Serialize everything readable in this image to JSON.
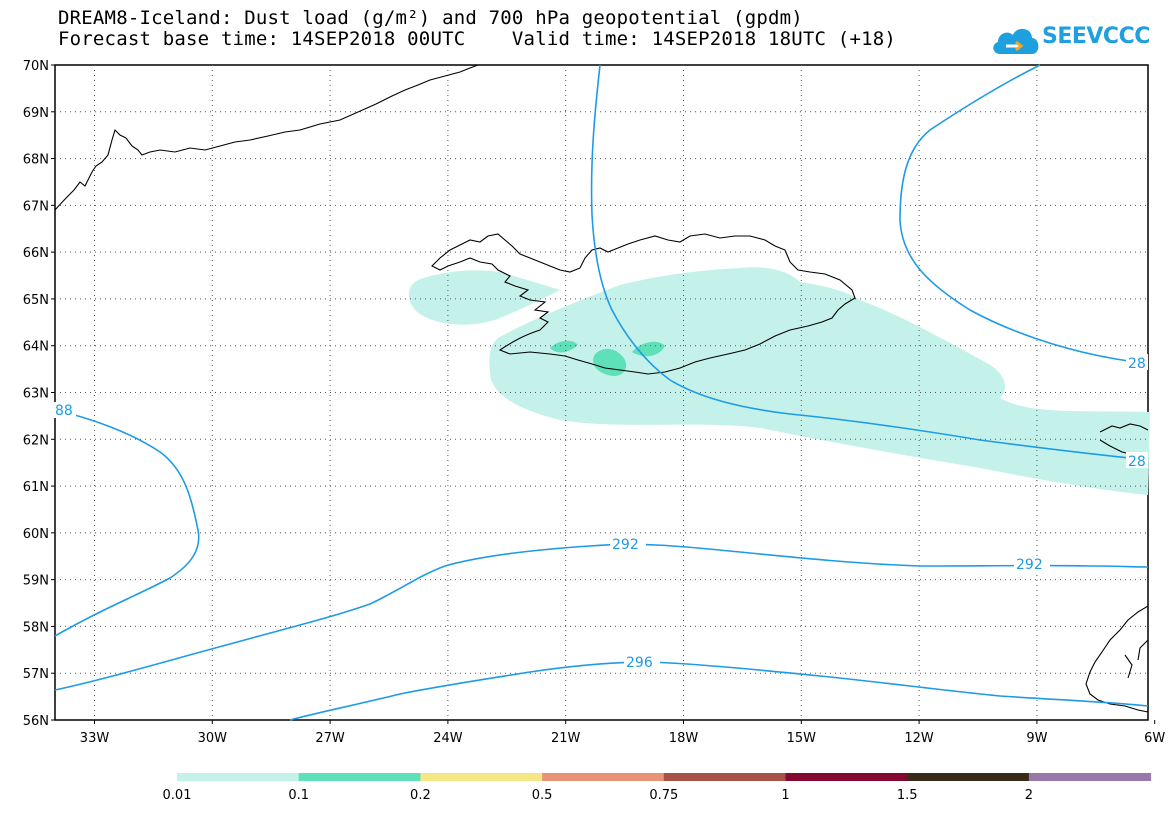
{
  "title": {
    "line1": "DREAM8-Iceland: Dust load (g/m²) and 700 hPa geopotential (gpdm)",
    "line2": "Forecast base time: 14SEP2018 00UTC    Valid time: 14SEP2018 18UTC (+18)"
  },
  "logo": {
    "text": "SEEVCCC",
    "icon": "cloud-icon",
    "color": "#1ea0df"
  },
  "map": {
    "lat_labels": [
      "70N",
      "69N",
      "68N",
      "67N",
      "66N",
      "65N",
      "64N",
      "63N",
      "62N",
      "61N",
      "60N",
      "59N",
      "58N",
      "57N",
      "56N"
    ],
    "lon_labels": [
      "33W",
      "30W",
      "27W",
      "24W",
      "21W",
      "18W",
      "15W",
      "12W",
      "9W",
      "6W"
    ],
    "contour_color": "#1e9be6",
    "dust_colors": {
      "light": "#c4f2ea",
      "medium": "#5ee0b8"
    },
    "contour_labels": [
      {
        "id": "c288w",
        "text": "88"
      },
      {
        "id": "c288ne",
        "text": "28"
      },
      {
        "id": "c288e",
        "text": "28"
      },
      {
        "id": "c292a",
        "text": "292"
      },
      {
        "id": "c292b",
        "text": "292"
      },
      {
        "id": "c296",
        "text": "296"
      }
    ]
  },
  "colorbar": {
    "colors": [
      "#c4f2ea",
      "#5ee0b8",
      "#f4e886",
      "#e89474",
      "#a65248",
      "#820a2e",
      "#3a2a18",
      "#9878a8"
    ],
    "labels": [
      "0.01",
      "0.1",
      "0.2",
      "0.5",
      "0.75",
      "1",
      "1.5",
      "2"
    ]
  }
}
